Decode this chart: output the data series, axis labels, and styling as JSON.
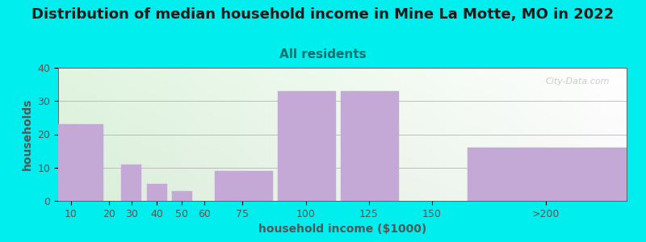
{
  "title": "Distribution of median household income in Mine La Motte, MO in 2022",
  "subtitle": "All residents",
  "xlabel": "household income ($1000)",
  "ylabel": "households",
  "background_color": "#00EEEE",
  "bar_color": "#C4A8D6",
  "bar_labels": [
    "10",
    "20",
    "30",
    "40",
    "50",
    "60",
    "75",
    "100",
    "125",
    "150",
    ">200"
  ],
  "bar_lefts": [
    0,
    20,
    25,
    35,
    45,
    55,
    62,
    87,
    112,
    137,
    162
  ],
  "bar_rights": [
    18,
    20,
    33,
    43,
    53,
    62,
    85,
    110,
    135,
    137,
    225
  ],
  "bar_heights": [
    23,
    0,
    11,
    5,
    3,
    0,
    9,
    33,
    33,
    0,
    16
  ],
  "tick_positions": [
    5,
    20,
    29,
    39,
    49,
    58,
    73,
    98,
    123,
    148,
    193
  ],
  "ylim": [
    0,
    40
  ],
  "yticks": [
    0,
    10,
    20,
    30,
    40
  ],
  "xlim": [
    0,
    225
  ],
  "title_fontsize": 13,
  "subtitle_fontsize": 11,
  "label_fontsize": 10,
  "tick_fontsize": 9,
  "title_color": "#1a1a1a",
  "subtitle_color": "#007070",
  "axis_color": "#555555",
  "watermark": "City-Data.com"
}
